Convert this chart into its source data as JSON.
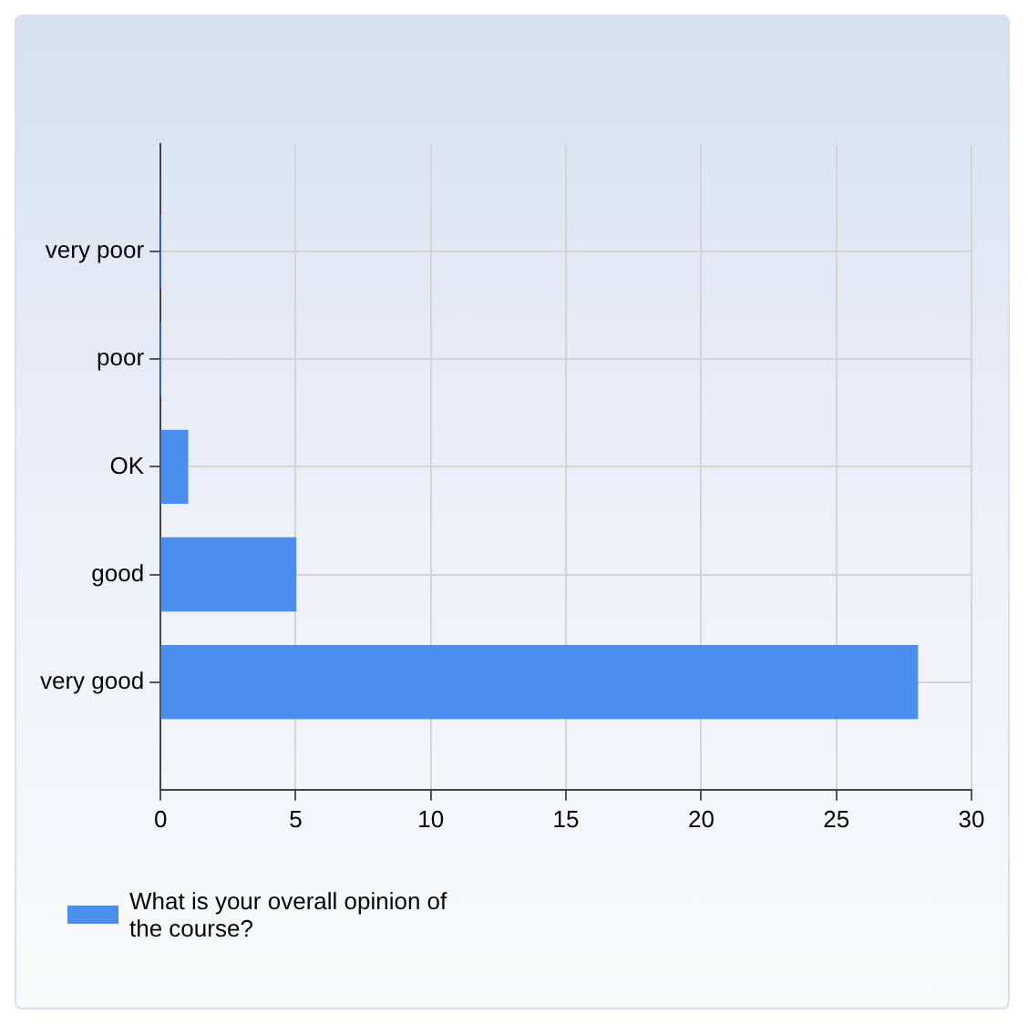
{
  "chart_data": {
    "type": "bar",
    "orientation": "horizontal",
    "categories": [
      "very poor",
      "poor",
      "OK",
      "good",
      "very good"
    ],
    "series": [
      {
        "name": "What is your overall opinion of the course?",
        "color": "#4a8ef0",
        "values": [
          0,
          0,
          1,
          5,
          28
        ]
      }
    ],
    "xlim": [
      0,
      30
    ],
    "xticks": [
      0,
      5,
      10,
      15,
      20,
      25,
      30
    ],
    "grid": true,
    "legend": "bottom left"
  }
}
